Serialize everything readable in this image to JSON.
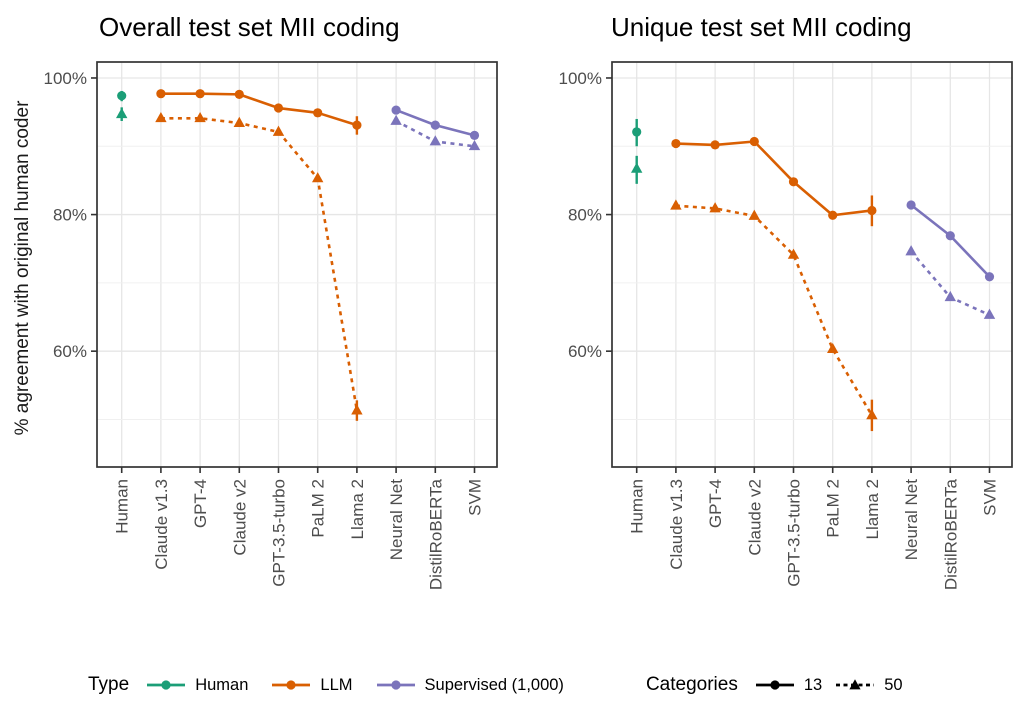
{
  "figure": {
    "y_axis_label": "% agreement with original human coder",
    "legend": {
      "type_title": "Type",
      "type_items": [
        {
          "label": "Human",
          "color": "#1b9e77"
        },
        {
          "label": "LLM",
          "color": "#d95f02"
        },
        {
          "label": "Supervised (1,000)",
          "color": "#7b74bb"
        }
      ],
      "categories_title": "Categories",
      "categories_items": [
        {
          "label": "13",
          "marker": "circle",
          "line": "solid",
          "color": "#000000"
        },
        {
          "label": "50",
          "marker": "triangle",
          "line": "dashed",
          "color": "#000000"
        }
      ]
    }
  },
  "chart_data": [
    {
      "type": "line",
      "title": "Overall test set MII coding",
      "ylabel": "% agreement with original human coder",
      "x_categories": [
        "Human",
        "Claude v1.3",
        "GPT-4",
        "Claude v2",
        "GPT-3.5-turbo",
        "PaLM 2",
        "Llama 2",
        "Neural Net",
        "DistilRoBERTa",
        "SVM"
      ],
      "y_ticks": [
        {
          "label": "100%",
          "value": 100
        },
        {
          "label": "80%",
          "value": 80
        },
        {
          "label": "60%",
          "value": 60
        }
      ],
      "grid": {
        "major": [
          100,
          80,
          60
        ],
        "minor": [
          90,
          70,
          50
        ]
      },
      "ylim": [
        43,
        102.3
      ],
      "series": [
        {
          "name": "Human",
          "categories": "13",
          "color": "#1b9e77",
          "marker": "circle",
          "line": "solid",
          "points": [
            {
              "x": "Human",
              "y": 97.4,
              "lo": 96.6,
              "hi": 98.1
            }
          ]
        },
        {
          "name": "Human",
          "categories": "50",
          "color": "#1b9e77",
          "marker": "triangle",
          "line": "dashed",
          "points": [
            {
              "x": "Human",
              "y": 94.7,
              "lo": 93.7,
              "hi": 95.7
            }
          ]
        },
        {
          "name": "LLM",
          "categories": "13",
          "color": "#d95f02",
          "marker": "circle",
          "line": "solid",
          "points": [
            {
              "x": "Claude v1.3",
              "y": 97.7
            },
            {
              "x": "GPT-4",
              "y": 97.7
            },
            {
              "x": "Claude v2",
              "y": 97.6
            },
            {
              "x": "GPT-3.5-turbo",
              "y": 95.6
            },
            {
              "x": "PaLM 2",
              "y": 94.9
            },
            {
              "x": "Llama 2",
              "y": 93.1,
              "lo": 91.7,
              "hi": 94.4
            }
          ]
        },
        {
          "name": "LLM",
          "categories": "50",
          "color": "#d95f02",
          "marker": "triangle",
          "line": "dashed",
          "points": [
            {
              "x": "Claude v1.3",
              "y": 94.1
            },
            {
              "x": "GPT-4",
              "y": 94.1
            },
            {
              "x": "Claude v2",
              "y": 93.4
            },
            {
              "x": "GPT-3.5-turbo",
              "y": 92.1
            },
            {
              "x": "PaLM 2",
              "y": 85.3
            },
            {
              "x": "Llama 2",
              "y": 51.3,
              "lo": 49.8,
              "hi": 52.8
            }
          ]
        },
        {
          "name": "Supervised (1,000)",
          "categories": "13",
          "color": "#7b74bb",
          "marker": "circle",
          "line": "solid",
          "points": [
            {
              "x": "Neural Net",
              "y": 95.3
            },
            {
              "x": "DistilRoBERTa",
              "y": 93.1
            },
            {
              "x": "SVM",
              "y": 91.6
            }
          ]
        },
        {
          "name": "Supervised (1,000)",
          "categories": "50",
          "color": "#7b74bb",
          "marker": "triangle",
          "line": "dashed",
          "points": [
            {
              "x": "Neural Net",
              "y": 93.7
            },
            {
              "x": "DistilRoBERTa",
              "y": 90.7
            },
            {
              "x": "SVM",
              "y": 90.0
            }
          ]
        }
      ]
    },
    {
      "type": "line",
      "title": "Unique test set MII coding",
      "ylabel": "% agreement with original human coder",
      "x_categories": [
        "Human",
        "Claude v1.3",
        "GPT-4",
        "Claude v2",
        "GPT-3.5-turbo",
        "PaLM 2",
        "Llama 2",
        "Neural Net",
        "DistilRoBERTa",
        "SVM"
      ],
      "y_ticks": [
        {
          "label": "100%",
          "value": 100
        },
        {
          "label": "80%",
          "value": 80
        },
        {
          "label": "60%",
          "value": 60
        }
      ],
      "grid": {
        "major": [
          100,
          80,
          60
        ],
        "minor": [
          90,
          70,
          50
        ]
      },
      "ylim": [
        43,
        102.3
      ],
      "series": [
        {
          "name": "Human",
          "categories": "13",
          "color": "#1b9e77",
          "marker": "circle",
          "line": "solid",
          "points": [
            {
              "x": "Human",
              "y": 92.1,
              "lo": 90.0,
              "hi": 94.0
            }
          ]
        },
        {
          "name": "Human",
          "categories": "50",
          "color": "#1b9e77",
          "marker": "triangle",
          "line": "dashed",
          "points": [
            {
              "x": "Human",
              "y": 86.7,
              "lo": 84.5,
              "hi": 88.6
            }
          ]
        },
        {
          "name": "LLM",
          "categories": "13",
          "color": "#d95f02",
          "marker": "circle",
          "line": "solid",
          "points": [
            {
              "x": "Claude v1.3",
              "y": 90.4
            },
            {
              "x": "GPT-4",
              "y": 90.2
            },
            {
              "x": "Claude v2",
              "y": 90.7
            },
            {
              "x": "GPT-3.5-turbo",
              "y": 84.8
            },
            {
              "x": "PaLM 2",
              "y": 79.9
            },
            {
              "x": "Llama 2",
              "y": 80.6,
              "lo": 78.3,
              "hi": 82.8
            }
          ]
        },
        {
          "name": "LLM",
          "categories": "50",
          "color": "#d95f02",
          "marker": "triangle",
          "line": "dashed",
          "points": [
            {
              "x": "Claude v1.3",
              "y": 81.3
            },
            {
              "x": "GPT-4",
              "y": 80.9
            },
            {
              "x": "Claude v2",
              "y": 79.8
            },
            {
              "x": "GPT-3.5-turbo",
              "y": 74.1
            },
            {
              "x": "PaLM 2",
              "y": 60.3
            },
            {
              "x": "Llama 2",
              "y": 50.6,
              "lo": 48.3,
              "hi": 52.9
            }
          ]
        },
        {
          "name": "Supervised (1,000)",
          "categories": "13",
          "color": "#7b74bb",
          "marker": "circle",
          "line": "solid",
          "points": [
            {
              "x": "Neural Net",
              "y": 81.4
            },
            {
              "x": "DistilRoBERTa",
              "y": 76.9
            },
            {
              "x": "SVM",
              "y": 70.9
            }
          ]
        },
        {
          "name": "Supervised (1,000)",
          "categories": "50",
          "color": "#7b74bb",
          "marker": "triangle",
          "line": "dashed",
          "points": [
            {
              "x": "Neural Net",
              "y": 74.6
            },
            {
              "x": "DistilRoBERTa",
              "y": 67.9
            },
            {
              "x": "SVM",
              "y": 65.3
            }
          ]
        }
      ]
    }
  ]
}
